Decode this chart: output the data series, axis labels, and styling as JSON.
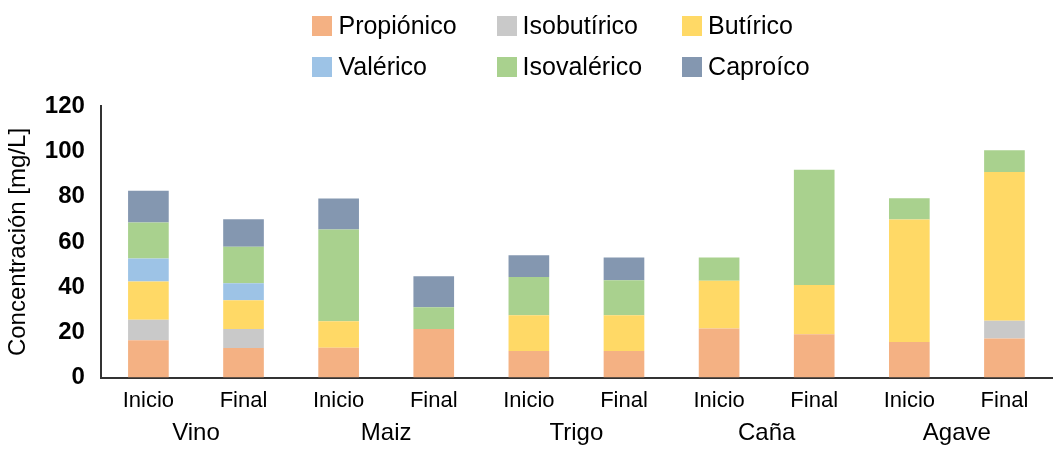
{
  "chart_data": {
    "type": "bar",
    "stacked": true,
    "ylabel": "Concentración [mg/L]",
    "categories": [
      "Inicio",
      "Final",
      "Inicio",
      "Final",
      "Inicio",
      "Final",
      "Inicio",
      "Final",
      "Inicio",
      "Final"
    ],
    "annotations": [
      "Vino",
      "Maiz",
      "Trigo",
      "Caña",
      "Agave"
    ],
    "series": [
      {
        "name": "Propiónico",
        "color": "#f4b183",
        "values": [
          16.5,
          13.1,
          13.2,
          21.5,
          11.8,
          11.8,
          21.7,
          19.2,
          15.8,
          17.3
        ]
      },
      {
        "name": "Isobutírico",
        "color": "#c9c9c9",
        "values": [
          9.1,
          8.4,
          null,
          null,
          null,
          null,
          null,
          null,
          null,
          7.8
        ]
      },
      {
        "name": "Butírico",
        "color": "#ffd966",
        "values": [
          16.9,
          12.7,
          11.7,
          null,
          15.8,
          15.8,
          21.1,
          21.8,
          54.2,
          65.9
        ]
      },
      {
        "name": "Valérico",
        "color": "#9dc3e6",
        "values": [
          10.2,
          7.6,
          null,
          null,
          null,
          null,
          null,
          null,
          null,
          null
        ]
      },
      {
        "name": "Isovalérico",
        "color": "#a9d18e",
        "values": [
          15.9,
          16.1,
          40.6,
          9.6,
          16.9,
          15.5,
          10.3,
          51.0,
          9.4,
          9.6
        ]
      },
      {
        "name": "Caproíco",
        "color": "#8497b0",
        "values": [
          14.1,
          12.2,
          13.8,
          13.7,
          9.6,
          10.0,
          null,
          null,
          null,
          null
        ]
      }
    ],
    "ylim": [
      0,
      120
    ],
    "yticks": [
      0,
      20,
      40,
      60,
      80,
      100,
      120
    ],
    "grid": false,
    "legend": "top"
  }
}
